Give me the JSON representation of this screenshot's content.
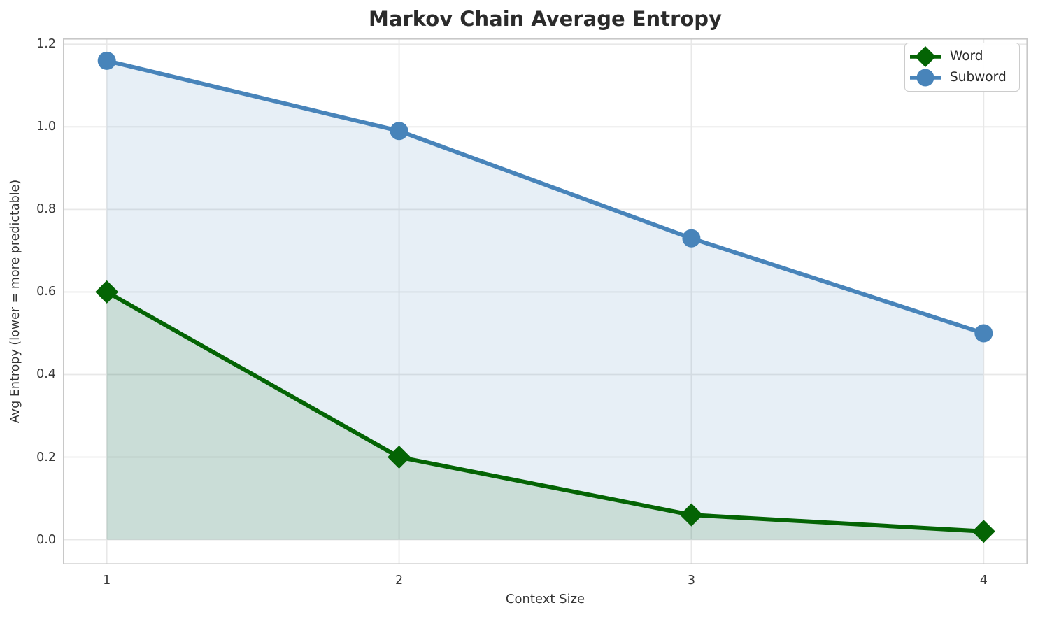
{
  "title": "Markov Chain Average Entropy",
  "chart_data": {
    "type": "line",
    "title": "Markov Chain Average Entropy",
    "xlabel": "Context Size",
    "ylabel": "Avg Entropy (lower = more predictable)",
    "x": [
      1,
      2,
      3,
      4
    ],
    "x_tick_labels": [
      "1",
      "2",
      "3",
      "4"
    ],
    "y_ticks": [
      0.0,
      0.2,
      0.4,
      0.6,
      0.8,
      1.0,
      1.2
    ],
    "y_tick_labels": [
      "0.0",
      "0.2",
      "0.4",
      "0.6",
      "0.8",
      "1.0",
      "1.2"
    ],
    "xlim": [
      0.85,
      4.15
    ],
    "ylim": [
      -0.06,
      1.214
    ],
    "grid": true,
    "legend_position": "upper right",
    "series": [
      {
        "name": "Word",
        "marker": "diamond",
        "color": "#046404",
        "fill": "rgba(4,100,4,0.13)",
        "values": [
          0.6,
          0.2,
          0.06,
          0.02
        ]
      },
      {
        "name": "Subword",
        "marker": "circle",
        "color": "#4884ba",
        "fill": "rgba(72,132,186,0.13)",
        "values": [
          1.16,
          0.99,
          0.73,
          0.5
        ]
      }
    ],
    "style": {
      "grid_color": "#e8e8e8",
      "spine_color": "#c8c8c8",
      "line_width": 6,
      "background": "#ffffff"
    }
  }
}
